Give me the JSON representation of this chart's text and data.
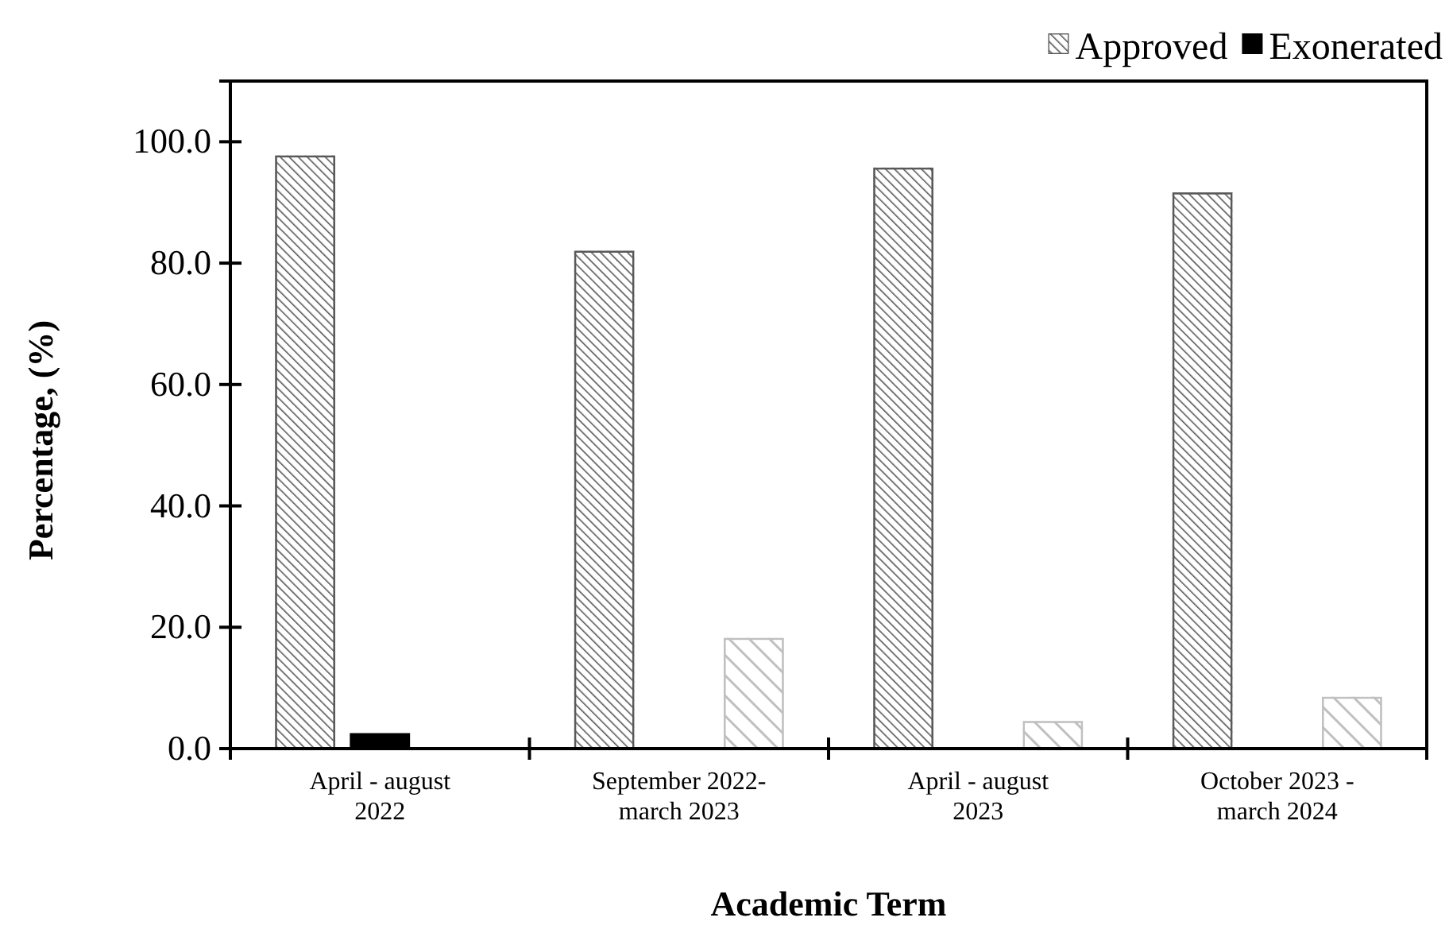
{
  "chart_data": {
    "type": "bar",
    "xlabel": "Academic Term",
    "ylabel": "Percentage, (%)",
    "categories": [
      "April - august 2022",
      "September 2022-march 2023",
      "April - august 2023",
      "October 2023 - march 2024"
    ],
    "series": [
      {
        "name": "Approved",
        "color": "#595959",
        "values": [
          97.6,
          81.9,
          95.6,
          91.5
        ]
      },
      {
        "name": "Exonerated",
        "color": "#000000",
        "values": [
          2.4,
          null,
          null,
          null
        ]
      },
      {
        "color": "#c0c0c0",
        "values": [
          null,
          18.1,
          4.4,
          8.4
        ]
      }
    ],
    "ylim": [
      0,
      110
    ],
    "yticks": [
      {
        "value": 0,
        "label": "0.0"
      },
      {
        "value": 20,
        "label": "20.0"
      },
      {
        "value": 40,
        "label": "40.0"
      },
      {
        "value": 60,
        "label": "60.0"
      },
      {
        "value": 80,
        "label": "80.0"
      },
      {
        "value": 100,
        "label": "100.0"
      }
    ],
    "grid": false,
    "legend": "top right"
  }
}
